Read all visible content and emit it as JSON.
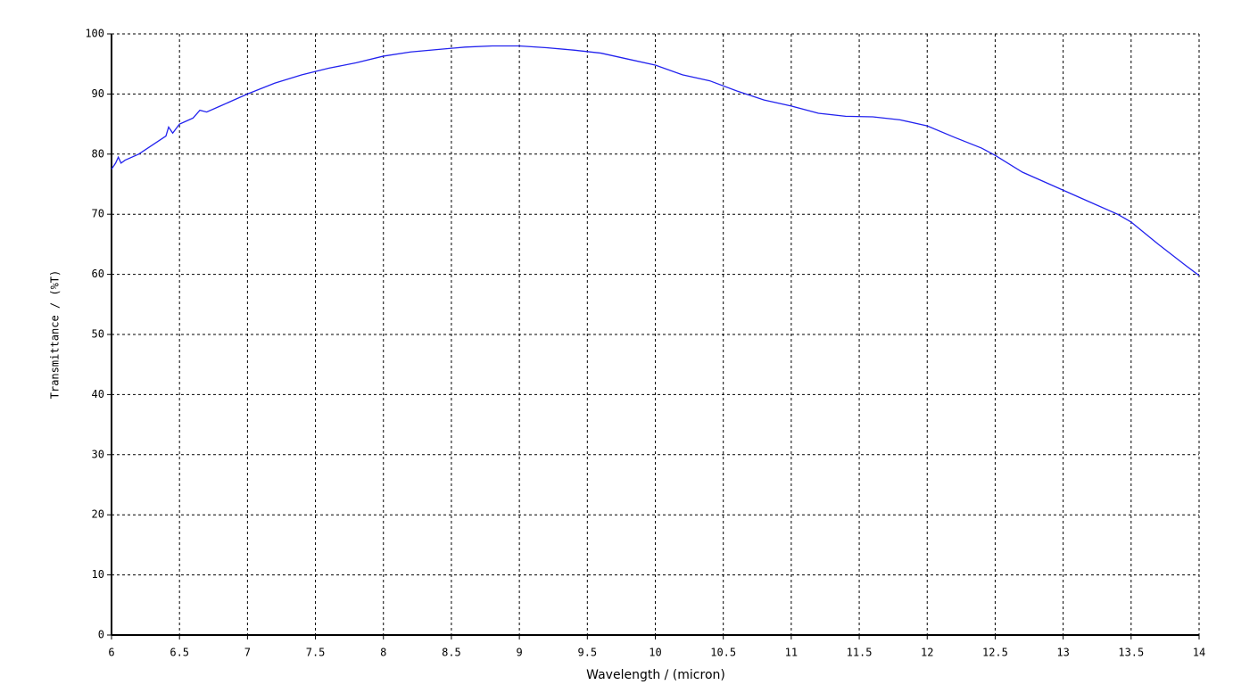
{
  "chart_data": {
    "type": "line",
    "x_label": "Wavelength / (micron)",
    "y_label": "Transmittance / (%T)",
    "xlim": [
      6,
      14
    ],
    "xticks": [
      6,
      6.5,
      7,
      7.5,
      8,
      8.5,
      9,
      9.5,
      10,
      10.5,
      11,
      11.5,
      12,
      12.5,
      13,
      13.5,
      14
    ],
    "ylim": [
      0,
      100
    ],
    "yticks": [
      0,
      10,
      20,
      30,
      40,
      50,
      60,
      70,
      80,
      90,
      100
    ],
    "grid": true,
    "color": "#2222ee",
    "x": [
      6.0,
      6.03,
      6.05,
      6.07,
      6.1,
      6.2,
      6.3,
      6.4,
      6.42,
      6.45,
      6.5,
      6.55,
      6.6,
      6.65,
      6.7,
      6.8,
      6.9,
      7.0,
      7.2,
      7.4,
      7.6,
      7.8,
      8.0,
      8.2,
      8.4,
      8.6,
      8.8,
      9.0,
      9.2,
      9.4,
      9.6,
      9.8,
      10.0,
      10.2,
      10.4,
      10.6,
      10.8,
      11.0,
      11.2,
      11.4,
      11.6,
      11.8,
      12.0,
      12.2,
      12.4,
      12.5,
      12.7,
      12.9,
      13.0,
      13.2,
      13.4,
      13.5,
      13.7,
      13.9,
      14.0
    ],
    "values": [
      77.5,
      78.5,
      79.5,
      78.5,
      79,
      80,
      81.5,
      83,
      84.5,
      83.5,
      85,
      85.5,
      86,
      87.3,
      87,
      88,
      89,
      90,
      91.8,
      93.2,
      94.3,
      95.2,
      96.3,
      97,
      97.4,
      97.8,
      98,
      98,
      97.7,
      97.3,
      96.8,
      95.8,
      94.8,
      93.2,
      92.2,
      90.5,
      89,
      88,
      86.8,
      86.3,
      86.2,
      85.7,
      84.7,
      82.8,
      81,
      79.8,
      77,
      75,
      74,
      72,
      70,
      68.7,
      65,
      61.5,
      59.8
    ]
  }
}
